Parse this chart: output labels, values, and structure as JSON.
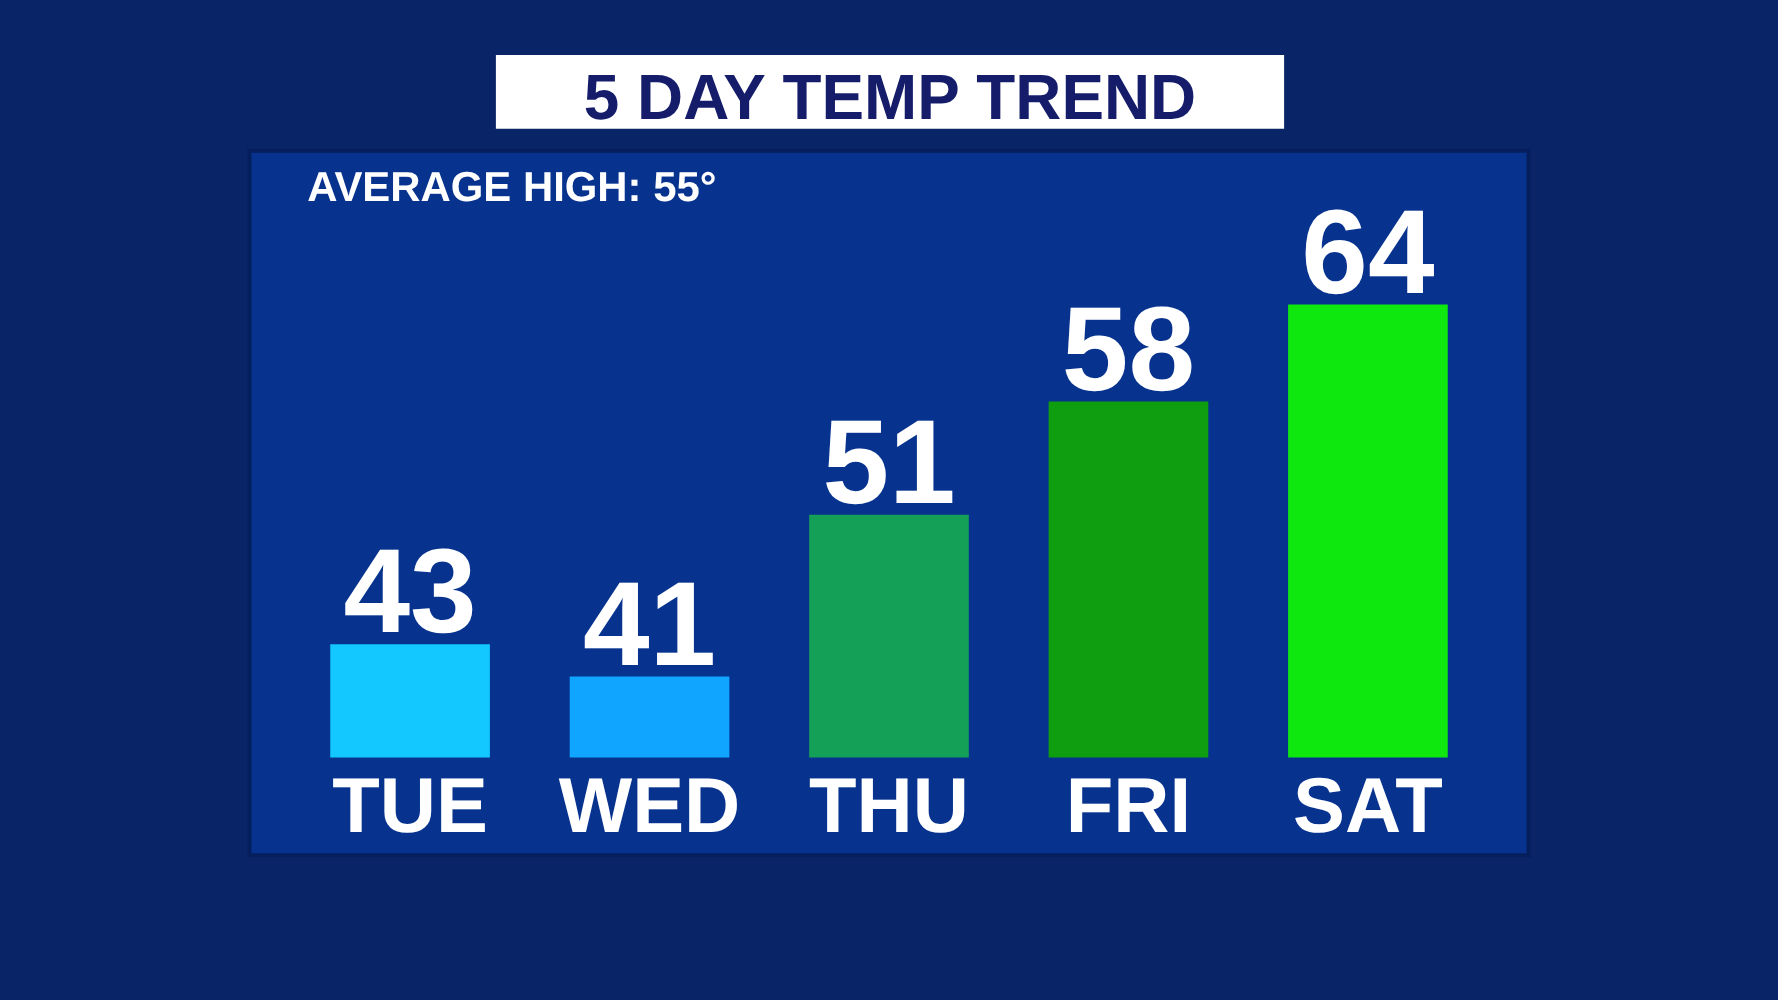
{
  "chart_data": {
    "type": "bar",
    "title": "5 DAY TEMP TREND",
    "annotations": [
      "AVERAGE HIGH: 55°"
    ],
    "categories": [
      "TUE",
      "WED",
      "THU",
      "FRI",
      "SAT"
    ],
    "values": [
      43,
      41,
      51,
      58,
      64
    ],
    "colors": [
      "#12c8ff",
      "#10a6ff",
      "#14a057",
      "#0e9e0f",
      "#0ee80e"
    ],
    "ylim": [
      36,
      73.5
    ],
    "data_labels": true,
    "tick_labels": "x"
  }
}
